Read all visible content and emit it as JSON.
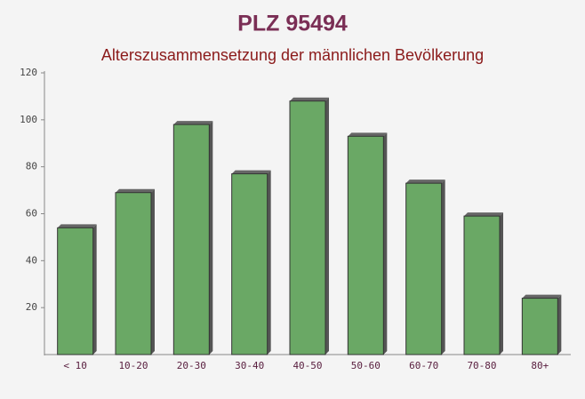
{
  "chart_data": {
    "type": "bar",
    "title": "PLZ 95494",
    "subtitle": "Alterszusammensetzung der männlichen Bevölkerung",
    "categories": [
      "< 10",
      "10-20",
      "20-30",
      "30-40",
      "40-50",
      "50-60",
      "60-70",
      "70-80",
      "80+"
    ],
    "values": [
      54,
      69,
      98,
      77,
      108,
      93,
      73,
      59,
      24
    ],
    "color": "#6aa865",
    "ylim": [
      0,
      120
    ],
    "yticks": [
      20,
      40,
      60,
      80,
      100,
      120
    ],
    "grid": false
  }
}
